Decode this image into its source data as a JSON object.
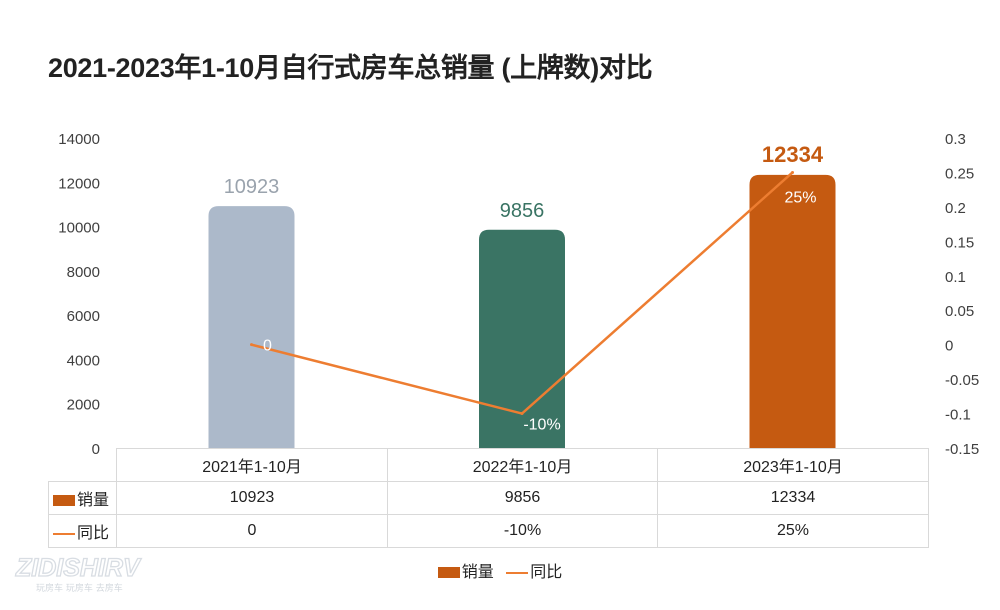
{
  "title": "2021-2023年1-10月自行式房车总销量 (上牌数)对比",
  "colors": {
    "line": "#ed7d31",
    "legend_bar": "#c55a11",
    "bar_2021": "#acb9ca",
    "bar_2022": "#3a7464",
    "bar_2023": "#c55a11",
    "label_2021": "#9aa3ad",
    "label_2022": "#3a7464",
    "label_2023": "#c55a11"
  },
  "chart_data": {
    "type": "bar",
    "categories": [
      "2021年1-10月",
      "2022年1-10月",
      "2023年1-10月"
    ],
    "series": [
      {
        "name": "销量",
        "type": "bar",
        "axis": "left",
        "values": [
          10923,
          9856,
          12334
        ],
        "labels": [
          "10923",
          "9856",
          "12334"
        ]
      },
      {
        "name": "同比",
        "type": "line",
        "axis": "right",
        "values": [
          0,
          -0.1,
          0.25
        ],
        "labels": [
          "0",
          "-10%",
          "25%"
        ]
      }
    ],
    "y_left": {
      "ylim": [
        0,
        14000
      ],
      "ticks": [
        "14000",
        "12000",
        "10000",
        "8000",
        "6000",
        "4000",
        "2000",
        "0"
      ]
    },
    "y_right": {
      "ylim": [
        -0.15,
        0.3
      ],
      "ticks": [
        "0.3",
        "0.25",
        "0.2",
        "0.15",
        "0.1",
        "0.05",
        "0",
        "-0.05",
        "-0.1",
        "-0.15"
      ]
    },
    "grid": false,
    "legend": "bottom",
    "data_table": {
      "rows": [
        {
          "label": "销量",
          "cells": [
            "10923",
            "9856",
            "12334"
          ]
        },
        {
          "label": "同比",
          "cells": [
            "0",
            "-10%",
            "25%"
          ]
        }
      ]
    }
  },
  "legend": [
    {
      "label": "销量",
      "kind": "bar"
    },
    {
      "label": "同比",
      "kind": "line"
    }
  ],
  "logo": {
    "text": "ZIDISHIRV",
    "tagline": "玩房车 玩房车 去房车"
  }
}
